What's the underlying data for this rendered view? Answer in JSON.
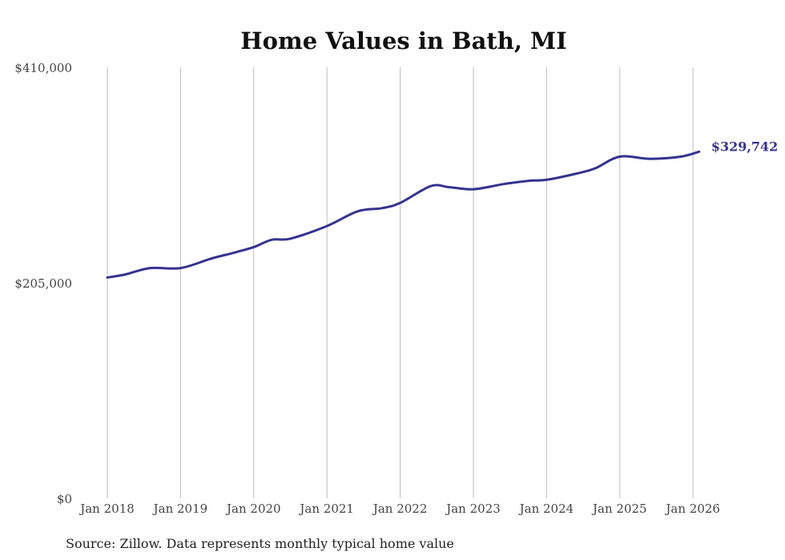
{
  "chart_data": {
    "type": "line",
    "title": "Home Values in Bath, MI",
    "xlabel": "",
    "ylabel": "",
    "ylim": [
      0,
      410000
    ],
    "yticks": [
      {
        "value": 0,
        "label": "$0"
      },
      {
        "value": 205000,
        "label": "$205,000"
      },
      {
        "value": 410000,
        "label": "$410,000"
      }
    ],
    "xticks": [
      {
        "value": "2018-01",
        "label": "Jan 2018"
      },
      {
        "value": "2019-01",
        "label": "Jan 2019"
      },
      {
        "value": "2020-01",
        "label": "Jan 2020"
      },
      {
        "value": "2021-01",
        "label": "Jan 2021"
      },
      {
        "value": "2022-01",
        "label": "Jan 2022"
      },
      {
        "value": "2023-01",
        "label": "Jan 2023"
      },
      {
        "value": "2024-01",
        "label": "Jan 2024"
      },
      {
        "value": "2025-01",
        "label": "Jan 2025"
      },
      {
        "value": "2026-01",
        "label": "Jan 2026"
      }
    ],
    "grid": "vertical",
    "series": [
      {
        "color": "#35338f",
        "end_label": "$329,742",
        "points": [
          {
            "x": "2018-01",
            "y": 210000
          },
          {
            "x": "2018-04",
            "y": 213000
          },
          {
            "x": "2018-08",
            "y": 219000
          },
          {
            "x": "2019-01",
            "y": 219000
          },
          {
            "x": "2019-06",
            "y": 228000
          },
          {
            "x": "2019-10",
            "y": 234000
          },
          {
            "x": "2020-01",
            "y": 239000
          },
          {
            "x": "2020-04",
            "y": 246000
          },
          {
            "x": "2020-07",
            "y": 247000
          },
          {
            "x": "2021-01",
            "y": 259000
          },
          {
            "x": "2021-06",
            "y": 273000
          },
          {
            "x": "2021-10",
            "y": 276000
          },
          {
            "x": "2022-01",
            "y": 281000
          },
          {
            "x": "2022-06",
            "y": 297000
          },
          {
            "x": "2022-09",
            "y": 296000
          },
          {
            "x": "2023-01",
            "y": 294000
          },
          {
            "x": "2023-06",
            "y": 299000
          },
          {
            "x": "2023-10",
            "y": 302000
          },
          {
            "x": "2024-01",
            "y": 303000
          },
          {
            "x": "2024-06",
            "y": 309000
          },
          {
            "x": "2024-09",
            "y": 314000
          },
          {
            "x": "2025-01",
            "y": 325000
          },
          {
            "x": "2025-06",
            "y": 323000
          },
          {
            "x": "2025-11",
            "y": 325000
          },
          {
            "x": "2026-02",
            "y": 329742
          }
        ]
      }
    ],
    "annotation": "Source: Zillow. Data represents monthly typical home value"
  }
}
